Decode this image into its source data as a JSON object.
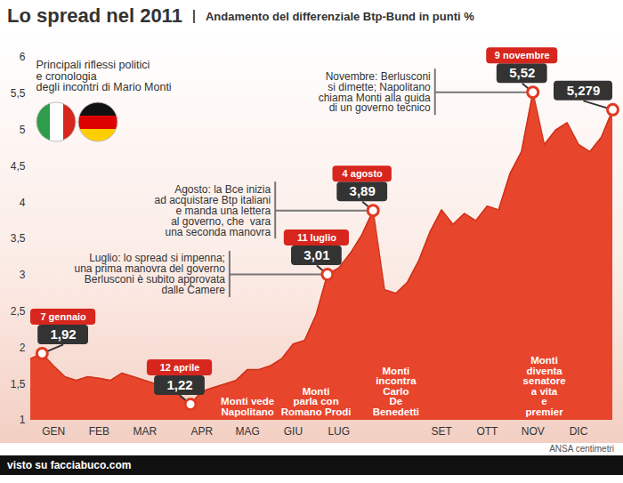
{
  "chart_data": {
    "type": "area",
    "title": "Lo spread nel 2011",
    "subtitle": "Andamento del differenziale Btp-Bund in punti %",
    "heading": "Principali riflessi politici\ne cronologia\ndegli incontri di Mario Monti",
    "categories": [
      null,
      null,
      "GEN",
      null,
      null,
      null,
      "FEB",
      null,
      null,
      null,
      "MAR",
      null,
      null,
      null,
      null,
      "APR",
      null,
      null,
      null,
      "MAG",
      null,
      null,
      null,
      "GIU",
      null,
      null,
      null,
      "LUG",
      null,
      null,
      null,
      null,
      null,
      null,
      null,
      null,
      "SET",
      null,
      null,
      null,
      "OTT",
      null,
      null,
      null,
      "NOV",
      null,
      null,
      null,
      "DIC",
      null,
      null,
      null
    ],
    "values": [
      1.85,
      1.92,
      1.75,
      1.6,
      1.55,
      1.6,
      1.58,
      1.55,
      1.65,
      1.6,
      1.55,
      1.5,
      1.45,
      1.35,
      1.22,
      1.4,
      1.45,
      1.5,
      1.55,
      1.7,
      1.7,
      1.75,
      1.85,
      2.05,
      2.1,
      2.45,
      3.01,
      3.1,
      3.3,
      3.55,
      3.89,
      2.8,
      2.75,
      2.9,
      3.2,
      3.6,
      3.9,
      3.7,
      3.85,
      3.75,
      3.95,
      3.9,
      4.4,
      4.7,
      5.52,
      4.8,
      5.0,
      5.1,
      4.8,
      4.7,
      4.9,
      5.279
    ],
    "color": "#e8452d",
    "ylim": [
      1,
      6
    ],
    "yticks": [
      1,
      {
        "value": 1.5,
        "label": "1,5"
      },
      2,
      {
        "value": 2.5,
        "label": "2,5"
      },
      3,
      {
        "value": 3.5,
        "label": "3,5"
      },
      4,
      {
        "value": 4.5,
        "label": "4,5"
      },
      5,
      {
        "value": 5.5,
        "label": "5,5"
      },
      6
    ],
    "grid": false,
    "callouts": [
      {
        "at": 1,
        "label": "7 gennaio",
        "value": 1.92,
        "value_label": "1,92"
      },
      {
        "at": 14,
        "label": "12 aprile",
        "value": 1.22,
        "value_label": "1,22"
      },
      {
        "at": 26,
        "label": "11 luglio",
        "value": 3.01,
        "value_label": "3,01"
      },
      {
        "at": 30,
        "label": "4 agosto",
        "value": 3.89,
        "value_label": "3,89"
      },
      {
        "at": 44,
        "label": "9 novembre",
        "value": 5.52,
        "value_label": "5,52"
      },
      {
        "at": 51,
        "value": 5.279,
        "value_label": "5,279"
      }
    ],
    "notes": [
      {
        "at": 26,
        "text": "Luglio: lo spread si impenna;\nuna prima manovra del governo\nBerlusconi è subito approvata\ndalle Camere"
      },
      {
        "at": 30,
        "text": "Agosto: la Bce inizia\nad acquistare Btp italiani\ne manda una lettera\nal governo, che  vara\nuna seconda manovra"
      },
      {
        "at": 44,
        "text": "Novembre: Berlusconi\nsi dimette; Napolitano\nchiama Monti alla guida\ndi un governo tecnico"
      }
    ],
    "events": [
      {
        "at": 19,
        "text": "Monti vede\nNapolitano"
      },
      {
        "at": 25,
        "text": "Monti\nparla con\nRomano Prodi"
      },
      {
        "at": 32,
        "text": "Monti\nincontra\nCarlo\nDe\nBenedetti"
      },
      {
        "at": 45,
        "text": "Monti\ndiventa\nsenatore\na vita\ne\npremier"
      }
    ],
    "source": "ANSA centimetri",
    "footer": "visto su facciabuco.com"
  }
}
